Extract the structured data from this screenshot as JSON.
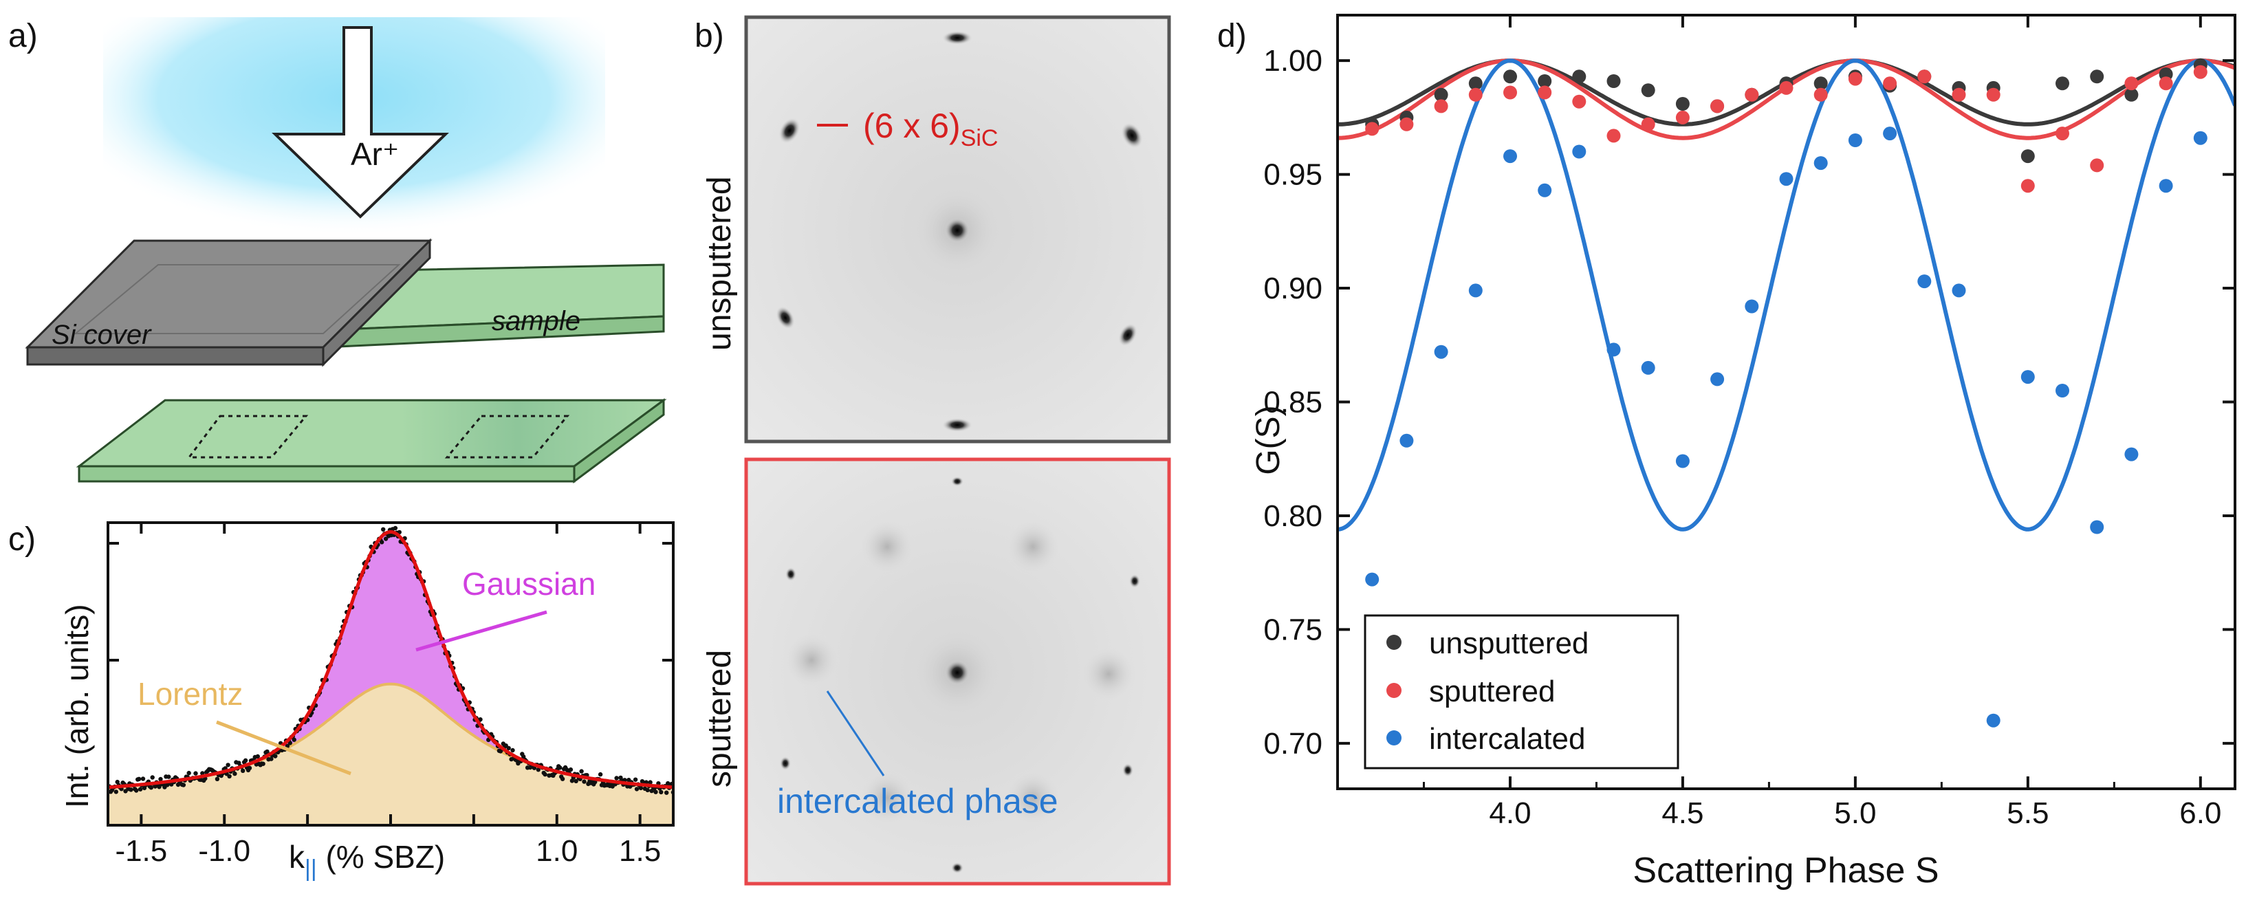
{
  "panel_labels": {
    "a": "a)",
    "b": "b)",
    "c": "c)",
    "d": "d)"
  },
  "panel_a": {
    "arrow_label": "Ar⁺",
    "cover_label": "Si cover",
    "sample_label": "sample"
  },
  "panel_b": {
    "top_side_label": "unsputtered",
    "bottom_side_label": "sputtered",
    "top_annotation": "(6 x 6)",
    "top_annotation_sub": "SiC",
    "bottom_annotation": "intercalated phase",
    "colors": {
      "top_frame": "#555555",
      "bottom_frame": "#e8474b",
      "annot_red": "#d62020",
      "annot_blue": "#2878d0"
    }
  },
  "panel_c": {
    "ylabel": "Int. (arb. units)",
    "xlabel_main": "k",
    "xlabel_sub": "||",
    "xlabel_rest": " (% SBZ)",
    "gaussian_label": "Gaussian",
    "lorentz_label": "Lorentz",
    "colors": {
      "gaussian": "#e08af0",
      "lorentz": "#f3dfb6",
      "fit": "#e01010",
      "label_gauss": "#d040e0",
      "label_lorentz": "#e8b860"
    }
  },
  "chart_data": [
    {
      "type": "line",
      "title": "",
      "xlabel": "Scattering Phase S",
      "ylabel": "G(S)",
      "xlim": [
        3.5,
        6.1
      ],
      "ylim": [
        0.68,
        1.02
      ],
      "xticks": [
        "4.0",
        "4.5",
        "5.0",
        "5.5",
        "6.0"
      ],
      "yticks": [
        "0.70",
        "0.75",
        "0.80",
        "0.85",
        "0.90",
        "0.95",
        "1.00"
      ],
      "legend_position": "bottom-left",
      "series": [
        {
          "name": "unsputtered",
          "color": "#3a3a3a",
          "points": [
            [
              3.6,
              0.972
            ],
            [
              3.7,
              0.975
            ],
            [
              3.8,
              0.985
            ],
            [
              3.9,
              0.99
            ],
            [
              4.0,
              0.993
            ],
            [
              4.1,
              0.991
            ],
            [
              4.2,
              0.993
            ],
            [
              4.3,
              0.991
            ],
            [
              4.4,
              0.987
            ],
            [
              4.5,
              0.981
            ],
            [
              4.6,
              0.98
            ],
            [
              4.7,
              0.985
            ],
            [
              4.8,
              0.99
            ],
            [
              4.9,
              0.99
            ],
            [
              5.0,
              0.993
            ],
            [
              5.1,
              0.989
            ],
            [
              5.2,
              0.993
            ],
            [
              5.3,
              0.988
            ],
            [
              5.4,
              0.988
            ],
            [
              5.5,
              0.958
            ],
            [
              5.6,
              0.99
            ],
            [
              5.7,
              0.993
            ],
            [
              5.8,
              0.985
            ],
            [
              5.9,
              0.994
            ],
            [
              6.0,
              0.998
            ]
          ],
          "fit_amplitude": 0.028
        },
        {
          "name": "sputtered",
          "color": "#e8474b",
          "points": [
            [
              3.6,
              0.97
            ],
            [
              3.7,
              0.972
            ],
            [
              3.8,
              0.98
            ],
            [
              3.9,
              0.985
            ],
            [
              4.0,
              0.986
            ],
            [
              4.1,
              0.986
            ],
            [
              4.2,
              0.982
            ],
            [
              4.3,
              0.967
            ],
            [
              4.4,
              0.972
            ],
            [
              4.5,
              0.975
            ],
            [
              4.6,
              0.98
            ],
            [
              4.7,
              0.985
            ],
            [
              4.8,
              0.988
            ],
            [
              4.9,
              0.985
            ],
            [
              5.0,
              0.992
            ],
            [
              5.1,
              0.99
            ],
            [
              5.2,
              0.993
            ],
            [
              5.3,
              0.985
            ],
            [
              5.4,
              0.985
            ],
            [
              5.5,
              0.945
            ],
            [
              5.6,
              0.968
            ],
            [
              5.7,
              0.954
            ],
            [
              5.8,
              0.99
            ],
            [
              5.9,
              0.99
            ],
            [
              6.0,
              0.995
            ]
          ],
          "fit_amplitude": 0.034
        },
        {
          "name": "intercalated",
          "color": "#2878d0",
          "points": [
            [
              3.6,
              0.772
            ],
            [
              3.7,
              0.833
            ],
            [
              3.8,
              0.872
            ],
            [
              3.9,
              0.899
            ],
            [
              4.0,
              0.958
            ],
            [
              4.1,
              0.943
            ],
            [
              4.2,
              0.96
            ],
            [
              4.3,
              0.873
            ],
            [
              4.4,
              0.865
            ],
            [
              4.5,
              0.824
            ],
            [
              4.6,
              0.86
            ],
            [
              4.7,
              0.892
            ],
            [
              4.8,
              0.948
            ],
            [
              4.9,
              0.955
            ],
            [
              5.0,
              0.965
            ],
            [
              5.1,
              0.968
            ],
            [
              5.2,
              0.903
            ],
            [
              5.3,
              0.899
            ],
            [
              5.4,
              0.71
            ],
            [
              5.5,
              0.861
            ],
            [
              5.6,
              0.855
            ],
            [
              5.7,
              0.795
            ],
            [
              5.8,
              0.827
            ],
            [
              5.9,
              0.945
            ],
            [
              6.0,
              0.966
            ]
          ],
          "fit_amplitude": 0.206
        }
      ]
    },
    {
      "type": "area",
      "title": "",
      "xlabel": "k|| (% SBZ)",
      "ylabel": "Int. (arb. units)",
      "xlim": [
        -1.7,
        1.7
      ],
      "xticks": [
        "-1.5",
        "-1.0",
        "1.0",
        "1.5"
      ],
      "series": [
        {
          "name": "Gaussian",
          "center": 0.0,
          "amplitude": 0.56,
          "sigma": 0.25
        },
        {
          "name": "Lorentz",
          "center": 0.0,
          "amplitude": 0.42,
          "gamma": 0.55
        }
      ],
      "background": 0.1
    }
  ]
}
